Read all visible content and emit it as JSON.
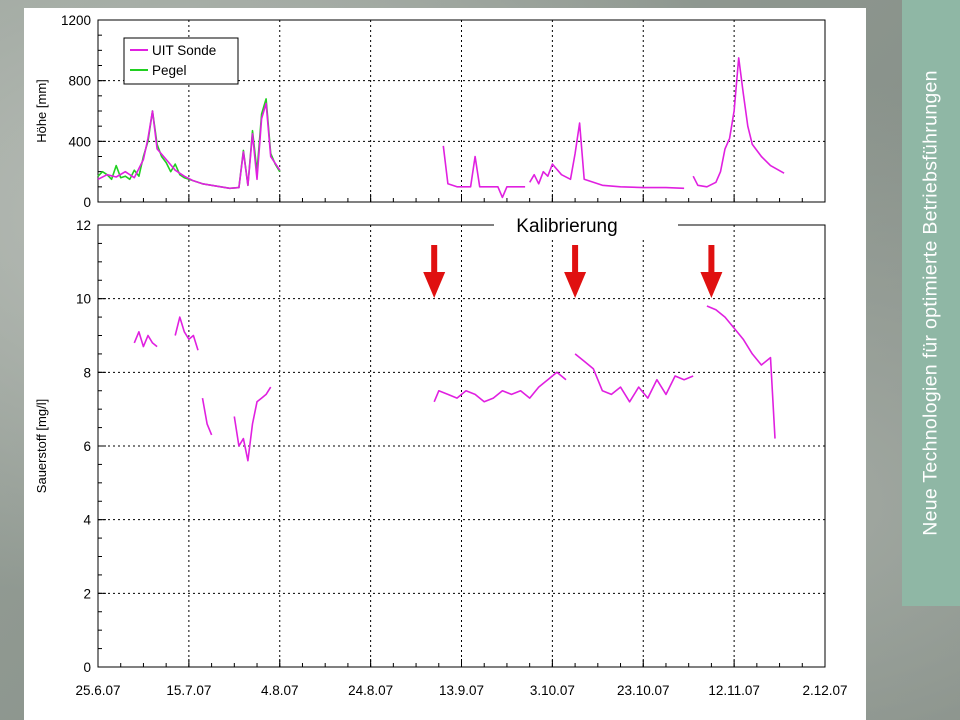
{
  "sidebar": {
    "title": "Neue Technologien für optimierte Betriebsführungen"
  },
  "annotation": {
    "label": "Kalibrierung",
    "arrow_dates": [
      "2007-09-07",
      "2007-10-08",
      "2007-11-07"
    ]
  },
  "colors": {
    "uit_sonde": "#e020e0",
    "pegel": "#20d020",
    "arrow": "#e01010",
    "sidebar": "#8fb7a5"
  },
  "chart_data": [
    {
      "type": "line",
      "ylabel": "Höhe [mm]",
      "ylim": [
        0,
        1200
      ],
      "yticks": [
        0,
        400,
        800,
        1200
      ],
      "xlim": [
        "2007-06-25",
        "2007-12-02"
      ],
      "xtick_labels": [
        "25.6.07",
        "15.7.07",
        "4.8.07",
        "24.8.07",
        "13.9.07",
        "3.10.07",
        "23.10.07",
        "12.11.07",
        "2.12.07"
      ],
      "grid": true,
      "legend": "top-left",
      "series": [
        {
          "name": "UIT Sonde",
          "color": "#e020e0",
          "segments": [
            [
              [
                "2007-06-25",
                150
              ],
              [
                "2007-06-27",
                180
              ],
              [
                "2007-06-29",
                165
              ],
              [
                "2007-07-01",
                200
              ],
              [
                "2007-07-03",
                160
              ],
              [
                "2007-07-05",
                280
              ],
              [
                "2007-07-06",
                420
              ],
              [
                "2007-07-07",
                600
              ],
              [
                "2007-07-08",
                350
              ],
              [
                "2007-07-10",
                280
              ],
              [
                "2007-07-12",
                210
              ],
              [
                "2007-07-14",
                170
              ],
              [
                "2007-07-16",
                140
              ],
              [
                "2007-07-18",
                120
              ],
              [
                "2007-07-20",
                110
              ],
              [
                "2007-07-22",
                100
              ],
              [
                "2007-07-24",
                90
              ],
              [
                "2007-07-26",
                95
              ],
              [
                "2007-07-27",
                330
              ],
              [
                "2007-07-28",
                110
              ],
              [
                "2007-07-29",
                450
              ],
              [
                "2007-07-30",
                150
              ],
              [
                "2007-07-31",
                550
              ],
              [
                "2007-08-01",
                650
              ],
              [
                "2007-08-02",
                300
              ],
              [
                "2007-08-04",
                210
              ]
            ],
            [
              [
                "2007-09-09",
                370
              ],
              [
                "2007-09-10",
                120
              ],
              [
                "2007-09-12",
                100
              ],
              [
                "2007-09-15",
                100
              ],
              [
                "2007-09-16",
                300
              ],
              [
                "2007-09-17",
                100
              ],
              [
                "2007-09-21",
                100
              ],
              [
                "2007-09-22",
                30
              ],
              [
                "2007-09-23",
                100
              ],
              [
                "2007-09-27",
                100
              ]
            ],
            [
              [
                "2007-09-28",
                130
              ],
              [
                "2007-09-29",
                180
              ],
              [
                "2007-09-30",
                120
              ],
              [
                "2007-10-01",
                200
              ],
              [
                "2007-10-02",
                170
              ],
              [
                "2007-10-03",
                250
              ],
              [
                "2007-10-05",
                180
              ],
              [
                "2007-10-07",
                150
              ],
              [
                "2007-10-08",
                320
              ],
              [
                "2007-10-09",
                520
              ],
              [
                "2007-10-10",
                150
              ],
              [
                "2007-10-14",
                110
              ],
              [
                "2007-10-18",
                100
              ],
              [
                "2007-10-23",
                95
              ],
              [
                "2007-10-28",
                95
              ],
              [
                "2007-11-01",
                90
              ]
            ],
            [
              [
                "2007-11-03",
                170
              ],
              [
                "2007-11-04",
                110
              ],
              [
                "2007-11-06",
                100
              ],
              [
                "2007-11-08",
                130
              ],
              [
                "2007-11-09",
                200
              ],
              [
                "2007-11-10",
                350
              ],
              [
                "2007-11-11",
                420
              ],
              [
                "2007-11-12",
                600
              ],
              [
                "2007-11-13",
                950
              ],
              [
                "2007-11-14",
                720
              ],
              [
                "2007-11-15",
                500
              ],
              [
                "2007-11-16",
                380
              ],
              [
                "2007-11-18",
                300
              ],
              [
                "2007-11-20",
                240
              ],
              [
                "2007-11-23",
                190
              ]
            ]
          ]
        },
        {
          "name": "Pegel",
          "color": "#20d020",
          "segments": [
            [
              [
                "2007-06-25",
                170
              ],
              [
                "2007-06-26",
                200
              ],
              [
                "2007-06-27",
                180
              ],
              [
                "2007-06-28",
                150
              ],
              [
                "2007-06-29",
                240
              ],
              [
                "2007-06-30",
                160
              ],
              [
                "2007-07-01",
                170
              ],
              [
                "2007-07-02",
                150
              ],
              [
                "2007-07-03",
                210
              ],
              [
                "2007-07-04",
                170
              ],
              [
                "2007-07-05",
                300
              ],
              [
                "2007-07-06",
                400
              ],
              [
                "2007-07-07",
                600
              ],
              [
                "2007-07-08",
                380
              ],
              [
                "2007-07-09",
                300
              ],
              [
                "2007-07-10",
                260
              ],
              [
                "2007-07-11",
                200
              ],
              [
                "2007-07-12",
                250
              ],
              [
                "2007-07-13",
                180
              ],
              [
                "2007-07-14",
                160
              ],
              [
                "2007-07-16",
                140
              ],
              [
                "2007-07-18",
                120
              ],
              [
                "2007-07-20",
                110
              ],
              [
                "2007-07-22",
                100
              ],
              [
                "2007-07-24",
                90
              ],
              [
                "2007-07-26",
                95
              ],
              [
                "2007-07-27",
                340
              ],
              [
                "2007-07-28",
                110
              ],
              [
                "2007-07-29",
                470
              ],
              [
                "2007-07-30",
                200
              ],
              [
                "2007-07-31",
                580
              ],
              [
                "2007-08-01",
                680
              ],
              [
                "2007-08-02",
                320
              ],
              [
                "2007-08-03",
                250
              ],
              [
                "2007-08-04",
                200
              ]
            ]
          ]
        }
      ]
    },
    {
      "type": "line",
      "ylabel": "Sauerstoff [mg/l]",
      "ylim": [
        0,
        12
      ],
      "yticks": [
        0,
        2,
        4,
        6,
        8,
        10,
        12
      ],
      "xlim": [
        "2007-06-25",
        "2007-12-02"
      ],
      "xtick_labels": [
        "25.6.07",
        "15.7.07",
        "4.8.07",
        "24.8.07",
        "13.9.07",
        "3.10.07",
        "23.10.07",
        "12.11.07",
        "2.12.07"
      ],
      "grid": true,
      "series": [
        {
          "name": "UIT Sonde",
          "color": "#e020e0",
          "segments": [
            [
              [
                "2007-07-03",
                8.8
              ],
              [
                "2007-07-04",
                9.1
              ],
              [
                "2007-07-05",
                8.7
              ],
              [
                "2007-07-06",
                9.0
              ],
              [
                "2007-07-07",
                8.8
              ],
              [
                "2007-07-08",
                8.7
              ]
            ],
            [
              [
                "2007-07-12",
                9.0
              ],
              [
                "2007-07-13",
                9.5
              ],
              [
                "2007-07-14",
                9.1
              ],
              [
                "2007-07-15",
                8.9
              ],
              [
                "2007-07-16",
                9.0
              ],
              [
                "2007-07-17",
                8.6
              ]
            ],
            [
              [
                "2007-07-18",
                7.3
              ],
              [
                "2007-07-19",
                6.6
              ],
              [
                "2007-07-20",
                6.3
              ]
            ],
            [
              [
                "2007-07-25",
                6.8
              ],
              [
                "2007-07-26",
                6.0
              ],
              [
                "2007-07-27",
                6.2
              ],
              [
                "2007-07-28",
                5.6
              ],
              [
                "2007-07-29",
                6.6
              ],
              [
                "2007-07-30",
                7.2
              ],
              [
                "2007-07-31",
                7.3
              ],
              [
                "2007-08-01",
                7.4
              ],
              [
                "2007-08-02",
                7.6
              ]
            ],
            [
              [
                "2007-09-07",
                7.2
              ],
              [
                "2007-09-08",
                7.5
              ],
              [
                "2007-09-10",
                7.4
              ],
              [
                "2007-09-12",
                7.3
              ],
              [
                "2007-09-14",
                7.5
              ],
              [
                "2007-09-16",
                7.4
              ],
              [
                "2007-09-18",
                7.2
              ],
              [
                "2007-09-20",
                7.3
              ],
              [
                "2007-09-22",
                7.5
              ],
              [
                "2007-09-24",
                7.4
              ],
              [
                "2007-09-26",
                7.5
              ],
              [
                "2007-09-28",
                7.3
              ],
              [
                "2007-09-30",
                7.6
              ],
              [
                "2007-10-02",
                7.8
              ],
              [
                "2007-10-04",
                8.0
              ],
              [
                "2007-10-06",
                7.8
              ]
            ],
            [
              [
                "2007-10-08",
                8.5
              ],
              [
                "2007-10-10",
                8.3
              ],
              [
                "2007-10-12",
                8.1
              ],
              [
                "2007-10-14",
                7.5
              ],
              [
                "2007-10-16",
                7.4
              ],
              [
                "2007-10-18",
                7.6
              ],
              [
                "2007-10-20",
                7.2
              ],
              [
                "2007-10-22",
                7.6
              ],
              [
                "2007-10-24",
                7.3
              ],
              [
                "2007-10-26",
                7.8
              ],
              [
                "2007-10-28",
                7.4
              ],
              [
                "2007-10-30",
                7.9
              ],
              [
                "2007-11-01",
                7.8
              ],
              [
                "2007-11-03",
                7.9
              ]
            ],
            [
              [
                "2007-11-06",
                9.8
              ],
              [
                "2007-11-08",
                9.7
              ],
              [
                "2007-11-10",
                9.5
              ],
              [
                "2007-11-12",
                9.2
              ],
              [
                "2007-11-14",
                8.9
              ],
              [
                "2007-11-16",
                8.5
              ],
              [
                "2007-11-18",
                8.2
              ],
              [
                "2007-11-20",
                8.4
              ],
              [
                "2007-11-21",
                6.2
              ]
            ]
          ]
        }
      ]
    }
  ]
}
